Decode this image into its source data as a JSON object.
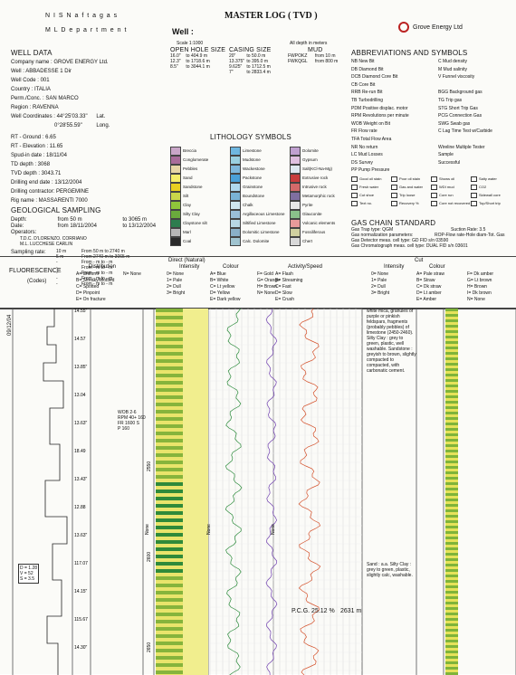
{
  "company_header": {
    "line1": "N I S  N a f t a g a s",
    "line2": "M L  D e p a r t m e n t"
  },
  "title": "MASTER LOG ( TVD )",
  "well_label": "Well :",
  "scale": "Scale 1:1000",
  "depth_unit": "All depth in meters",
  "logo_text": "Grove Energy Ltd",
  "well_data": {
    "heading": "WELL DATA",
    "company": "Company name : GROVE ENERGY Ltd.",
    "well": "Well : ABBADESSE 1 Dir",
    "well_code": "Well Code : 001",
    "country": "Country : ITALIA",
    "permit": "Perm./Conc. : SAN MARCO",
    "region": "Region : RAVENNA",
    "coord_label": "Well Coordinates :",
    "lat": "44°25'03.33\"",
    "lat_label": "Lat.",
    "long": "0°28'55.59\"",
    "long_label": "Long.",
    "rt_ground": "RT - Ground : 6.65",
    "rt_elev": "RT - Elevation : 11.65",
    "spud": "Spud-in date : 18/11/04",
    "td_depth": "TD depth : 3068",
    "tvd_depth": "TVD depth : 3043.71",
    "drill_end": "Drilling end date : 13/12/2004",
    "contractor": "Drilling contractor: PERGEMINE",
    "rig": "Rig name : MASSARENTI 7000"
  },
  "geo_sampling": {
    "heading": "GEOLOGICAL SAMPLING",
    "depth_label": "Depth:",
    "depth_val": "from 50 m",
    "depth_to": "to 3065 m",
    "date_label": "Date:",
    "date_val": "from 18/11/2004",
    "date_to": "to 13/12/2004",
    "operators_label": "Operators:",
    "op1": "T.D.C. D'LORENZO. CORRIANO",
    "op2": "M.L. LUCCHESE CARLIN",
    "rate_label": "Sampling rate:",
    "rates": [
      [
        "10 m",
        "From 50 m  to 2740 m"
      ],
      [
        "5 m",
        "From 2740 m  to 3065 m"
      ],
      [
        "-",
        "From - m  to - m"
      ],
      [
        "-",
        "From - m  to - m"
      ],
      [
        "-",
        "From - m  to - m"
      ],
      [
        "-",
        "From - m  to - m"
      ],
      [
        "-",
        "From - m  to - m"
      ]
    ]
  },
  "hole_size": {
    "heading": "OPEN HOLE SIZE",
    "rows": [
      [
        "16.0\"",
        "fr 0.0m",
        "to",
        "404.9 m"
      ],
      [
        "12.3\"",
        "fr 0.0m",
        "to",
        "1718.6 m"
      ],
      [
        "8.5\"",
        "fr 0.0m",
        "to",
        "3044.1 m"
      ]
    ]
  },
  "casing": {
    "heading": "CASING SIZE",
    "rows": [
      [
        "20\"",
        "fr 0.0m",
        "to",
        "50.0 m"
      ],
      [
        "13.375\"",
        "fr 0.0m",
        "to",
        "395.0 m"
      ],
      [
        "9.625\"",
        "fr 0.0m",
        "to",
        "1712.5 m"
      ],
      [
        "7\"",
        "fr 0.0m",
        "to",
        "2833.4 m"
      ]
    ]
  },
  "mud": {
    "heading": "MUD",
    "rows": [
      [
        "FWPOKZ",
        "from 10 m"
      ],
      [
        "FWKQGL",
        "from 800 m"
      ]
    ]
  },
  "abbr": {
    "heading": "ABBREVIATIONS AND SYMBOLS",
    "left": [
      "NB New Bit",
      "DB Diamond Bit",
      "DCB Diamond Core Bit",
      "CB Core Bit",
      "RRB Re-run Bit",
      "TB Turbodrilling",
      "PDM Positive displac. motor",
      "RPM Revolutions per minute",
      "WOB Weight on Bit",
      "FR Flow rate",
      "TFA Total Flow Area",
      "NR No return",
      "LC Mud Losses",
      "DS Survey",
      "PP Pump Pressure"
    ],
    "right": [
      "C Mud density",
      "M Mud salinity",
      "V Funnel viscosity",
      "",
      "BGG Background gas",
      "TG Trip gas",
      "STG Short Trip Gas",
      "PCG Connection Gas",
      "SWG Swab gas",
      "C Lag Time Test w/Carbide",
      "",
      "Wireline Multiple Tester",
      "Sample",
      "Successful",
      ""
    ],
    "symbols": [
      "Good oil stain",
      "Poor oil stain",
      "Shows oil",
      "Salty water",
      "Fresh water",
      "Gas and water",
      "WDI mud",
      "CO2",
      "Cut shoe",
      "Trip loose",
      "Core run",
      "Sidewall core",
      "Text no.",
      "Recovery %",
      "Core not recovered",
      "Top/Short trip"
    ]
  },
  "lithology": {
    "heading": "LITHOLOGY SYMBOLS",
    "col1": [
      "Breccia",
      "Conglomerate",
      "Pebbles",
      "Sand",
      "Sandstone",
      "Silt",
      "Clay",
      "Silty Clay",
      "Claystone silt",
      "Marl",
      "Coal"
    ],
    "col2": [
      "Limestone",
      "Mudstone",
      "Wackestone",
      "Packstone",
      "Grainstone",
      "Boundstone",
      "Chalk",
      "Argillaceous Limestone",
      "Siltified Limestone",
      "Dolomitic Limestone",
      "Calc. Dolomite"
    ],
    "col3": [
      "Dolomite",
      "Gypsum",
      "Salt(KCl-Na-Mg)",
      "Extrusive rock",
      "Intrusive rock",
      "Metamorphic rock",
      "Pyrite",
      "Glauconite",
      "Volcanic elements",
      "Fossiliferous",
      "Chert"
    ],
    "colors1": [
      "#c9a6c8",
      "#a86c9a",
      "#e6d6a6",
      "#f5ee6a",
      "#e8d020",
      "#c9d64a",
      "#8fc63a",
      "#6aaa3c",
      "#2d7d4e",
      "#b7b7b7",
      "#2a2a2a"
    ],
    "colors2": [
      "#6fb7e0",
      "#9ad0e0",
      "#7fb8dc",
      "#4aa0d8",
      "#b0d8ee",
      "#7ab3d6",
      "#cfe6ef",
      "#9abfd8",
      "#b7d7e4",
      "#8ab0c8",
      "#a0c4d0"
    ],
    "colors3": [
      "#c0a0d0",
      "#e0c0e0",
      "#dfe8f0",
      "#c83c3c",
      "#d46a6a",
      "#7f6fa0",
      "#e8e8e8",
      "#8ac08a",
      "#e89a9a",
      "#d0d0a0",
      "#d8d8d8"
    ]
  },
  "gas_chain": {
    "heading": "GAS CHAIN STANDARD",
    "lines": [
      "Gas Trap type: QGM",
      "Gas normalization parameters:",
      "Gas Detector meas. cell type: GD FID s/n 03590",
      "Gas Chromatograph meas. cell type: DUAL FID s/n 03601"
    ],
    "suction": "Suction Rate: 3.5",
    "norm": "ROP-Flow rate-Hole diam-Tot. Gas"
  },
  "fluorescence": {
    "heading": "FLUORESCENCE",
    "codes": "(Codes)",
    "direct": "Direct (Natural)",
    "cut": "Cut",
    "distribution": {
      "label": "Distribution",
      "items": [
        "A= Uniform",
        "B= Streaky/Mottled",
        "C= Spotted",
        "D= Pinpoint",
        "E= On fracture"
      ],
      "extra": "N= None"
    },
    "intensity": {
      "label": "Intensity",
      "items": [
        "0= None",
        "1= Pale",
        "2= Dull",
        "3= Bright"
      ]
    },
    "colour": {
      "label": "Colour",
      "items": [
        "A= Blue",
        "B= White",
        "C= Lt yellow",
        "D= Yellow",
        "E= Dark yellow"
      ],
      "items2": [
        "F= Gold",
        "G= Orange",
        "H= Brown",
        "N= None"
      ]
    },
    "activity": {
      "label": "Activity/Speed",
      "items": [
        "A= Flash",
        "B= Streaming",
        "C= Fast",
        "D= Slow",
        "E= Crush"
      ]
    },
    "cut_intensity": {
      "label": "Intensity",
      "items": [
        "0= None",
        "1= Pale",
        "2= Dull",
        "3= Bright"
      ]
    },
    "cut_colour": {
      "label": "Colour",
      "items": [
        "A= Pale straw",
        "B= Straw",
        "C= Dk straw",
        "D= Lt amber",
        "E= Amber"
      ],
      "items2": [
        "F= Dk amber",
        "G= Lt brown",
        "H= Brown",
        "I= Dk brown",
        "N= None"
      ]
    }
  },
  "log": {
    "date_stamp": "09/12/04",
    "bit_box": "WOB 2-6\nRPM 40+ 160\nFR 1600 S\nP 160",
    "dv_box": "D = 1.28\nV = 52\nS = 3.5",
    "pcg_label": "P.C.G. 25.12 %",
    "pcg_depth": "2631 m",
    "depth_markers": [
      "14.55\"",
      "14.57",
      "13.85\"",
      "13.04",
      "13.63\"",
      "18.49",
      "13.43\"",
      "12.88",
      "13.63\"",
      "117.07",
      "14.15\"",
      "115.67",
      "14.30\""
    ],
    "depth_ticks": [
      "2550",
      "2600",
      "2650"
    ],
    "desc_top": "white mica, granules of purple or pinkish feldspars, fragments (probably pebbles) of limestone (2450-2460). Silty Clay : grey to green, plastic, well washable. Sandstone : greyish to brown, slightly compacted to compacted, with carbonatic cement.",
    "desc_bottom": "Sand : a.a. Silty Clay : grey to green, plastic, slightly calc, washable.",
    "none_labels": [
      "None",
      "None",
      "None"
    ]
  }
}
